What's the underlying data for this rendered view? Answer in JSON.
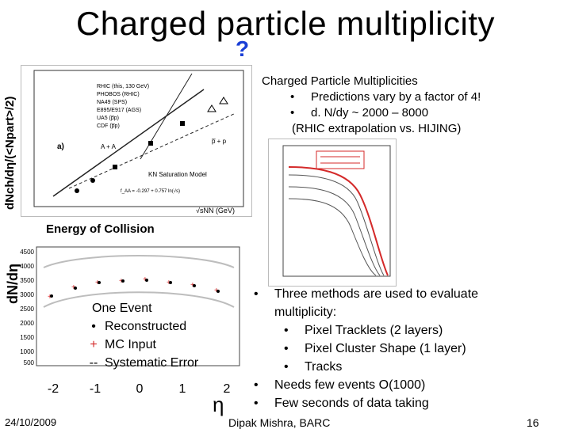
{
  "slide": {
    "title": "Charged particle multiplicity",
    "question_mark": "?",
    "fig1": {
      "ylabel": "dNch/dη/(<Npart>/2)",
      "xlabel": "Energy of Collision",
      "legend": [
        "RHIC (this, 130 GeV)",
        "PHOBOS (RHIC)",
        "NA49 (SPS)",
        "E895/E917 (AGS)",
        "UA5 (p̅p)",
        "CDF (p̅p)"
      ],
      "panel_tag": "a)",
      "aa_label": "A + A",
      "pp_label": "p̅ + p",
      "model_label": "KN Saturation Model",
      "x_axis_unit": "√sNN (GeV)",
      "fit_label": "f_AA = -0.297 + 0.757 ln(√s)"
    },
    "fig3": {
      "ylabel": "dN/dη",
      "xlabel": "η",
      "yticks": [
        "4500",
        "4000",
        "3500",
        "3000",
        "2500",
        "2000",
        "1500",
        "1000",
        "500"
      ],
      "xticks": [
        "-2",
        "-1",
        "0",
        "1",
        "2"
      ],
      "legend_title": "One Event",
      "legend_items": [
        {
          "marker": "•",
          "label": "Reconstructed"
        },
        {
          "marker": "+",
          "label": "MC Input"
        },
        {
          "marker": "--",
          "label": "Systematic Error"
        }
      ]
    },
    "info": {
      "heading": "Charged Particle Multiplicities",
      "bullets": [
        "Predictions vary by a factor of 4!",
        "d. N/dy ~ 2000 – 8000"
      ],
      "note": "(RHIC extrapolation vs. HIJING)"
    },
    "methods": {
      "items": [
        {
          "level": 0,
          "text": "Three methods are used to evaluate"
        },
        {
          "level": 0,
          "text": "multiplicity:",
          "cont": true
        },
        {
          "level": 1,
          "text": "Pixel Tracklets (2 layers)"
        },
        {
          "level": 1,
          "text": "Pixel Cluster Shape (1 layer)"
        },
        {
          "level": 1,
          "text": "Tracks"
        },
        {
          "level": 0,
          "text": "Needs few events O(1000)",
          "cont": true
        },
        {
          "level": 0,
          "text": "Few seconds of data taking"
        }
      ]
    },
    "footer": {
      "date": "24/10/2009",
      "author": "Dipak Mishra, BARC",
      "page": "16"
    },
    "colors": {
      "question_mark": "#1a3fd6",
      "mc_input": "#d42a2a",
      "error_band": "#bdbdbd"
    }
  }
}
